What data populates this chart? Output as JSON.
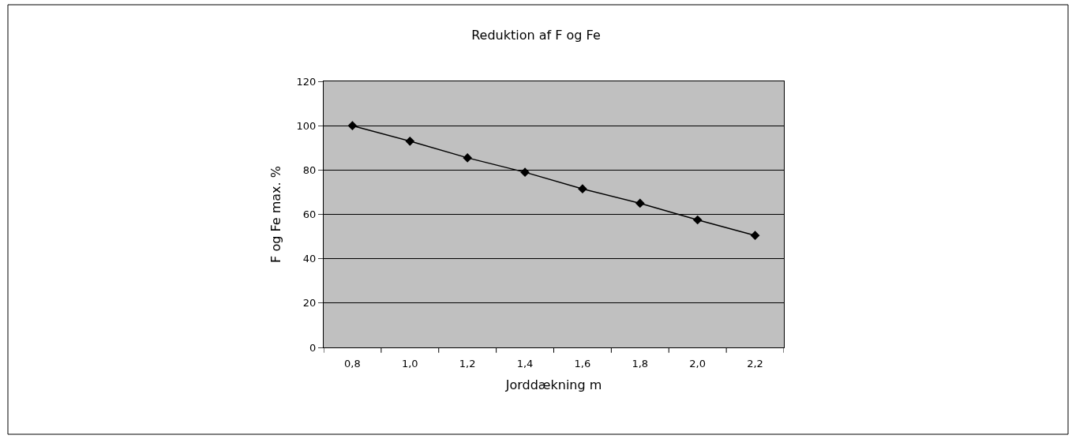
{
  "chart_data": {
    "type": "line",
    "title": "Reduktion af F og Fe",
    "xlabel": "Jorddækning m",
    "ylabel": "F og Fe max. %",
    "categories": [
      "0,8",
      "1,0",
      "1,2",
      "1,4",
      "1,6",
      "1,8",
      "2,0",
      "2,2"
    ],
    "series": [
      {
        "color": "#000000",
        "values": [
          100,
          93,
          85.5,
          79,
          71.5,
          65,
          57.5,
          50.5
        ]
      }
    ],
    "ylim": [
      0,
      120
    ],
    "yticks": [
      0,
      20,
      40,
      60,
      80,
      100,
      120
    ],
    "grid": "y",
    "legend": false,
    "marker": "diamond",
    "line_style": "solid"
  }
}
